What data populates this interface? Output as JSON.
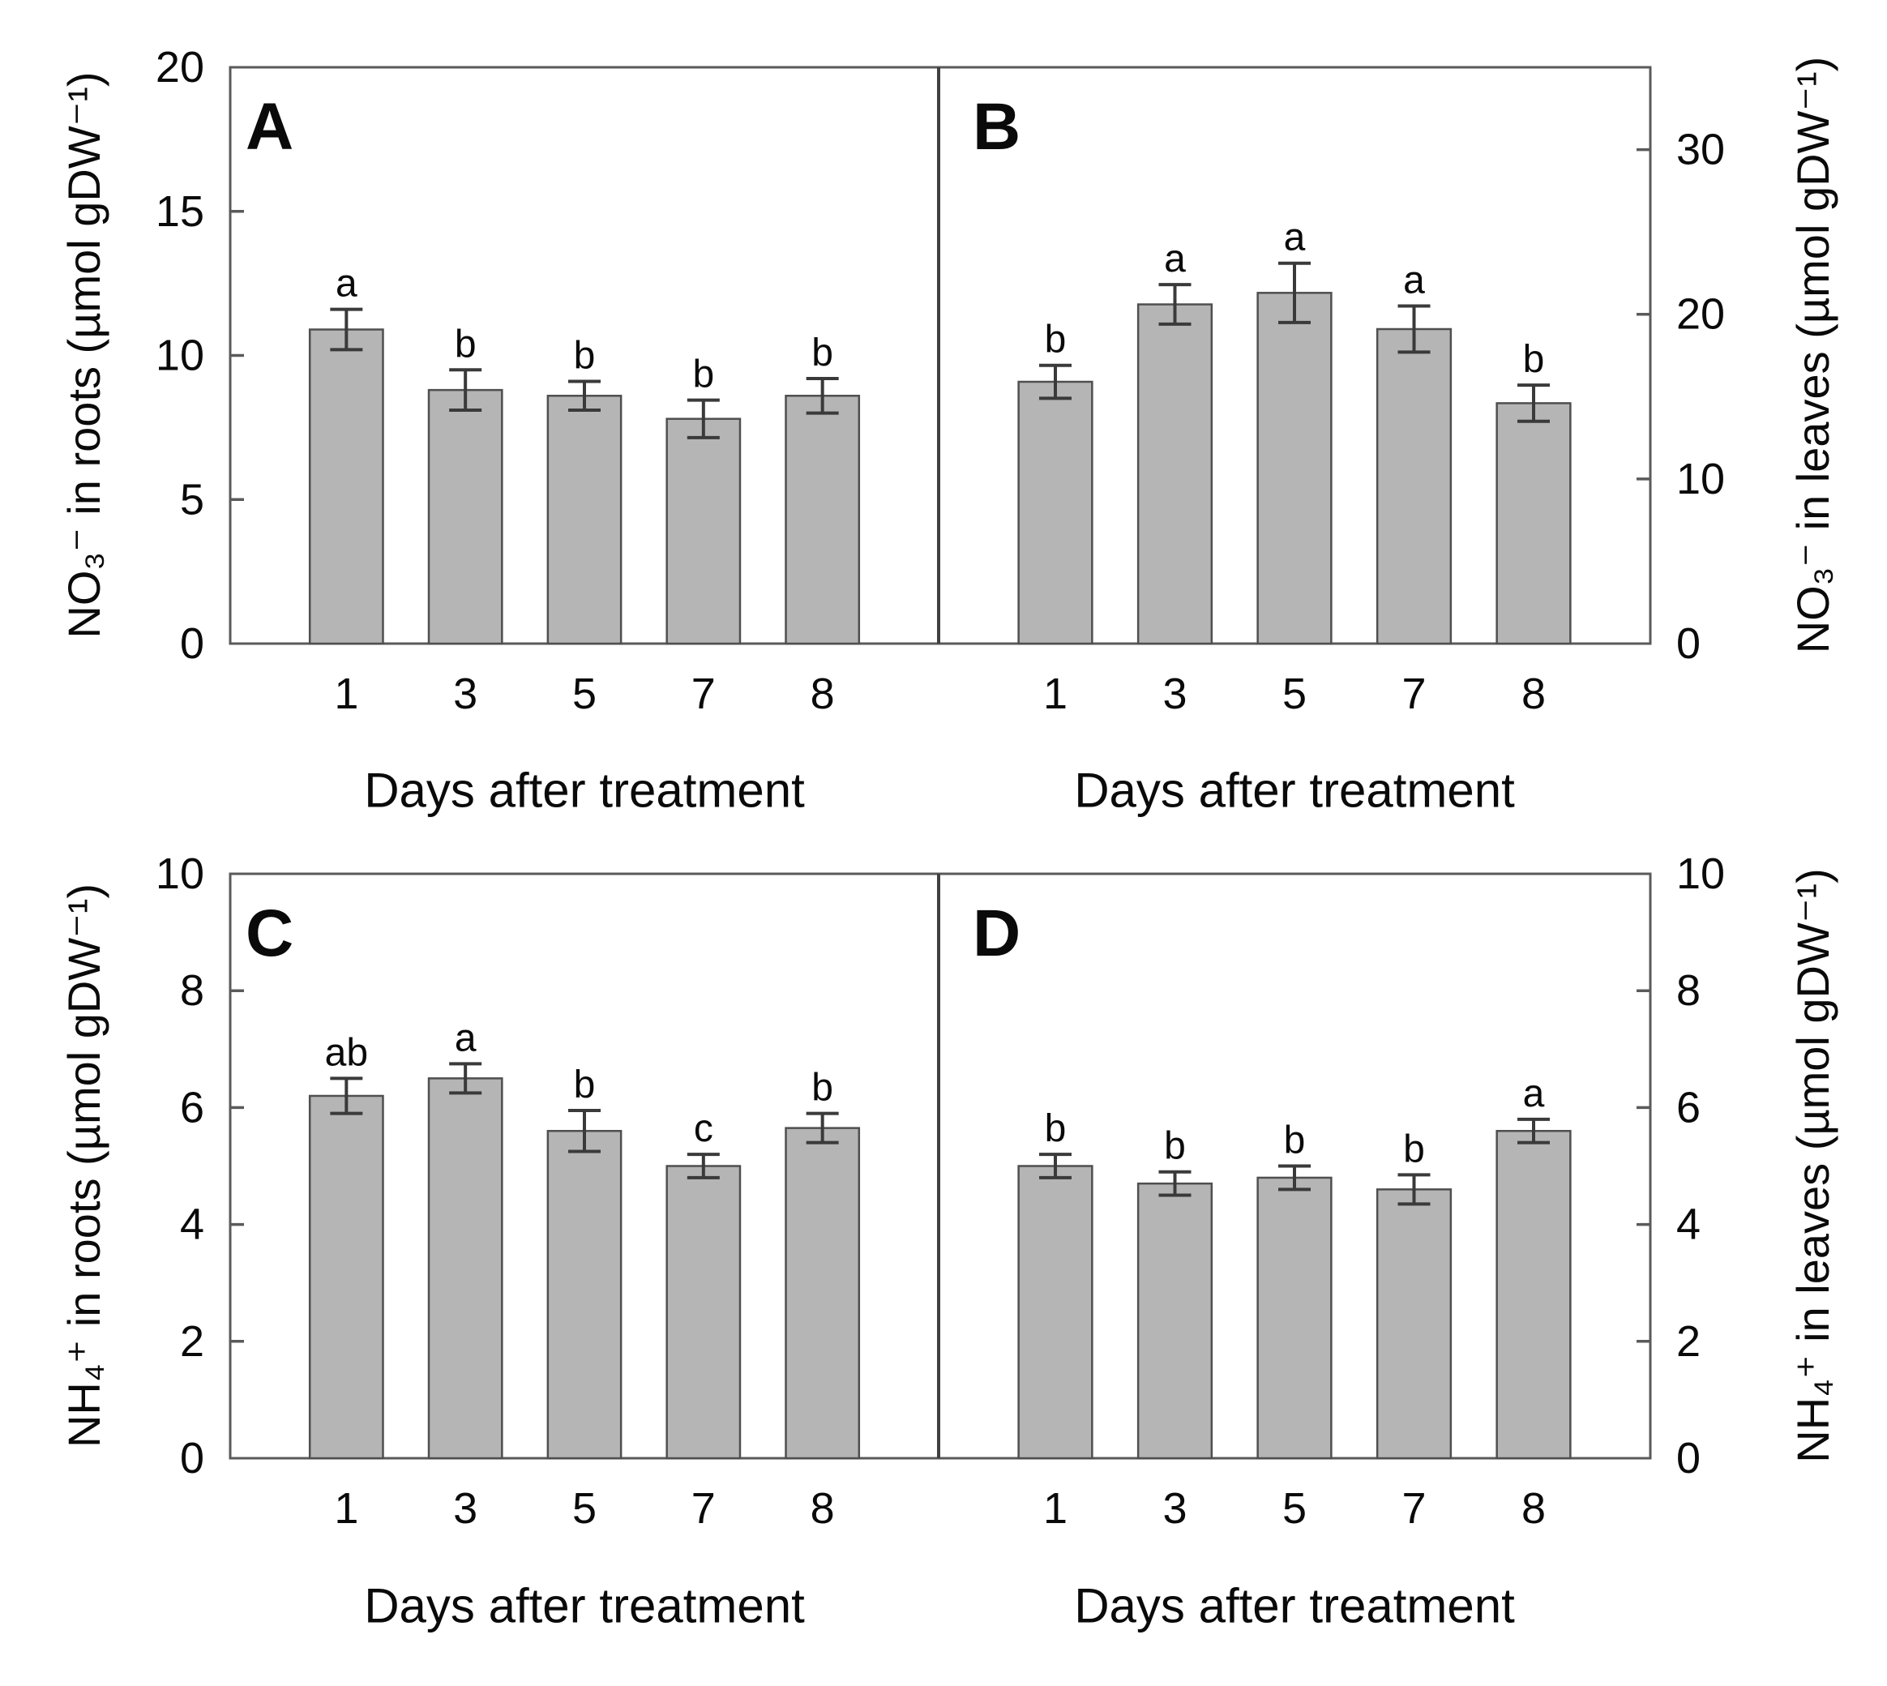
{
  "figure": {
    "xlabel": "Days after treatment"
  },
  "colors": {
    "bar_fill": "#b5b5b5",
    "bar_stroke": "#4f4f4f",
    "frame": "#5a5a5a",
    "divider": "#404040",
    "error_bar": "#3a3a3a",
    "text": "#0a0a0a",
    "background": "#ffffff"
  },
  "chart_data": [
    {
      "type": "bar",
      "panel": "A",
      "ylabel": "NO₃⁻ in roots (µmol gDW⁻¹)",
      "xlabel": "Days after treatment",
      "axis_side": "left",
      "grid": false,
      "ylim": [
        0,
        20
      ],
      "yticks": [
        0,
        5,
        10,
        15,
        20
      ],
      "categories": [
        "1",
        "3",
        "5",
        "7",
        "8"
      ],
      "values": [
        10.9,
        8.8,
        8.6,
        7.8,
        8.6
      ],
      "errors": [
        0.7,
        0.7,
        0.5,
        0.65,
        0.6
      ],
      "sig_letters": [
        "a",
        "b",
        "b",
        "b",
        "b"
      ]
    },
    {
      "type": "bar",
      "panel": "B",
      "ylabel": "NO₃⁻ in leaves (µmol gDW⁻¹)",
      "xlabel": "Days after treatment",
      "axis_side": "right",
      "grid": false,
      "ylim": [
        0,
        35
      ],
      "yticks": [
        0,
        10,
        20,
        30
      ],
      "categories": [
        "1",
        "3",
        "5",
        "7",
        "8"
      ],
      "values": [
        15.9,
        20.6,
        21.3,
        19.1,
        14.6
      ],
      "errors": [
        1.0,
        1.2,
        1.8,
        1.4,
        1.1
      ],
      "sig_letters": [
        "b",
        "a",
        "a",
        "a",
        "b"
      ]
    },
    {
      "type": "bar",
      "panel": "C",
      "ylabel": "NH₄⁺ in roots (µmol gDW⁻¹)",
      "xlabel": "Days after treatment",
      "axis_side": "left",
      "grid": false,
      "ylim": [
        0,
        10
      ],
      "yticks": [
        0,
        2,
        4,
        6,
        8,
        10
      ],
      "categories": [
        "1",
        "3",
        "5",
        "7",
        "8"
      ],
      "values": [
        6.2,
        6.5,
        5.6,
        5.0,
        5.65
      ],
      "errors": [
        0.3,
        0.25,
        0.35,
        0.2,
        0.25
      ],
      "sig_letters": [
        "ab",
        "a",
        "b",
        "c",
        "b"
      ]
    },
    {
      "type": "bar",
      "panel": "D",
      "ylabel": "NH₄⁺ in leaves (µmol gDW⁻¹)",
      "xlabel": "Days after treatment",
      "axis_side": "right",
      "grid": false,
      "ylim": [
        0,
        10
      ],
      "yticks": [
        0,
        2,
        4,
        6,
        8,
        10
      ],
      "categories": [
        "1",
        "3",
        "5",
        "7",
        "8"
      ],
      "values": [
        5.0,
        4.7,
        4.8,
        4.6,
        5.6
      ],
      "errors": [
        0.2,
        0.2,
        0.2,
        0.25,
        0.2
      ],
      "sig_letters": [
        "b",
        "b",
        "b",
        "b",
        "a"
      ]
    }
  ]
}
